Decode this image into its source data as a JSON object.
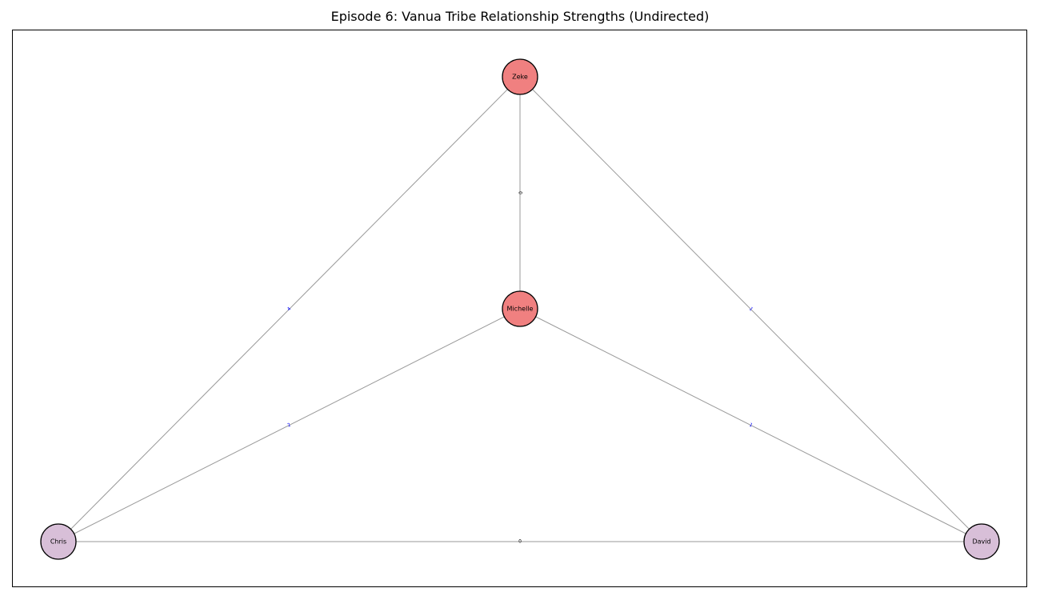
{
  "title": "Episode 6: Vanua Tribe Relationship Strengths (Undirected)",
  "colors": {
    "zeke_michelle": "#f08080",
    "chris_david": "#d8bfd8",
    "edge": "#9a9a9a",
    "label_zero": "#000000",
    "label_nonzero": "#0000ff"
  },
  "nodes": [
    {
      "id": "zeke",
      "label": "Zeke",
      "color": "#f08080"
    },
    {
      "id": "michelle",
      "label": "Michelle",
      "color": "#f08080"
    },
    {
      "id": "chris",
      "label": "Chris",
      "color": "#d8bfd8"
    },
    {
      "id": "david",
      "label": "David",
      "color": "#d8bfd8"
    }
  ],
  "edges": [
    {
      "source": "zeke",
      "target": "michelle",
      "weight": "0"
    },
    {
      "source": "zeke",
      "target": "chris",
      "weight": "4"
    },
    {
      "source": "zeke",
      "target": "david",
      "weight": "1"
    },
    {
      "source": "michelle",
      "target": "chris",
      "weight": "2"
    },
    {
      "source": "michelle",
      "target": "david",
      "weight": "1"
    },
    {
      "source": "chris",
      "target": "david",
      "weight": "0"
    }
  ]
}
